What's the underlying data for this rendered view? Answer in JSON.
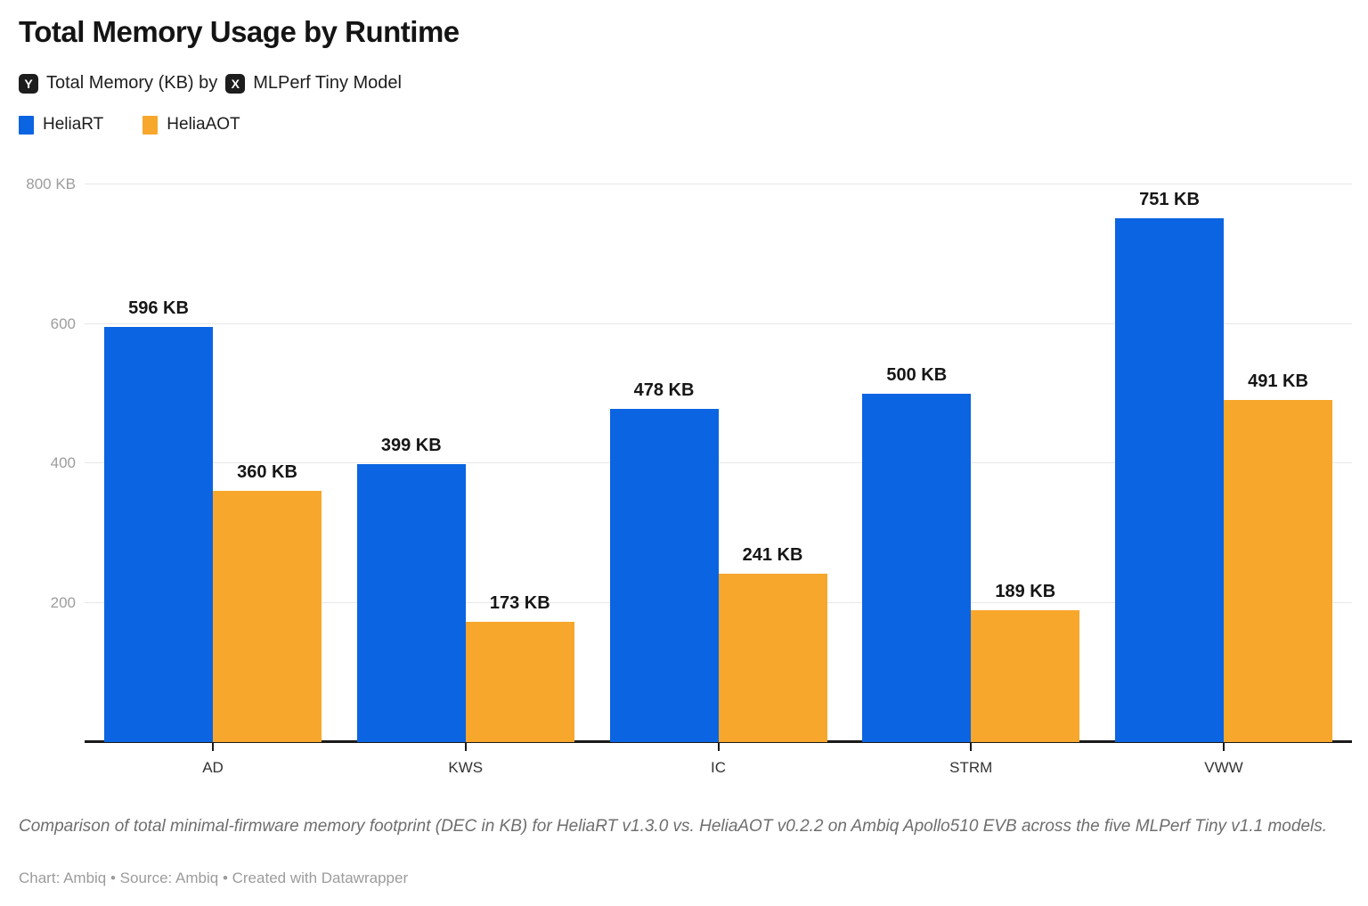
{
  "header": {
    "title": "Total Memory Usage by Runtime",
    "subtitle": {
      "y_badge": "Y",
      "y_label": "Total Memory (KB) by",
      "x_badge": "X",
      "x_label": "MLPerf Tiny Model"
    }
  },
  "legend": {
    "items": [
      {
        "label": "HeliaRT",
        "color": "#0b64e1"
      },
      {
        "label": "HeliaAOT",
        "color": "#f7a72b"
      }
    ]
  },
  "chart_data": {
    "type": "bar",
    "title": "Total Memory Usage by Runtime",
    "xlabel": "MLPerf Tiny Model",
    "ylabel": "Total Memory (KB)",
    "categories": [
      "AD",
      "KWS",
      "IC",
      "STRM",
      "VWW"
    ],
    "series": [
      {
        "name": "HeliaRT",
        "color": "#0b64e1",
        "values": [
          596,
          399,
          478,
          500,
          751
        ]
      },
      {
        "name": "HeliaAOT",
        "color": "#f7a72b",
        "values": [
          360,
          173,
          241,
          189,
          491
        ]
      }
    ],
    "value_label_suffix": " KB",
    "ylim": [
      0,
      800
    ],
    "y_ticks": [
      {
        "value": 200,
        "label": "200"
      },
      {
        "value": 400,
        "label": "400"
      },
      {
        "value": 600,
        "label": "600"
      },
      {
        "value": 800,
        "label": "800 KB"
      }
    ],
    "grid": true,
    "legend_position": "top-left"
  },
  "footer": {
    "description": "Comparison of total minimal-firmware memory footprint (DEC in KB) for HeliaRT v1.3.0 vs. HeliaAOT v0.2.2 on Ambiq Apollo510 EVB across the five MLPerf Tiny v1.1 models.",
    "credits": "Chart: Ambiq • Source: Ambiq • Created with Datawrapper"
  }
}
